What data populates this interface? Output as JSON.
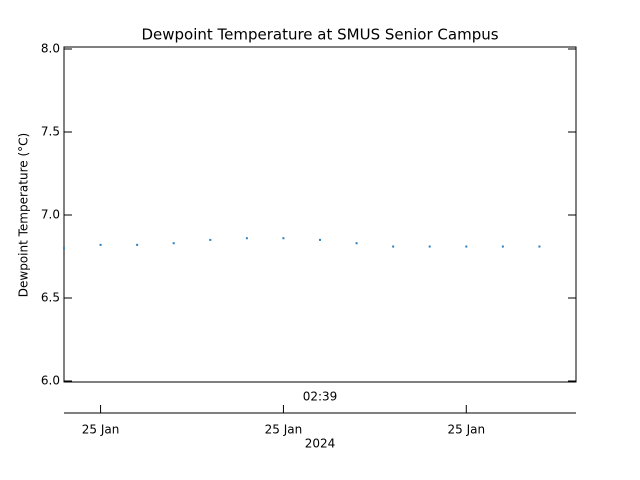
{
  "chart_data": {
    "type": "scatter",
    "title": "Dewpoint Temperature at SMUS Senior Campus",
    "ylabel": "Dewpoint Temperature (°C)",
    "xlabel": "02:39",
    "xlabel_year": "2024",
    "categories": [
      null,
      "25 Jan",
      null,
      null,
      null,
      null,
      "25 Jan",
      null,
      null,
      null,
      null,
      "25 Jan",
      null,
      null
    ],
    "values": [
      6.8,
      6.82,
      6.82,
      6.83,
      6.85,
      6.86,
      6.86,
      6.85,
      6.83,
      6.81,
      6.81,
      6.81,
      6.81,
      6.81
    ],
    "color": "#2a7fc0",
    "ylim": [
      6.0,
      8.0
    ],
    "yticks": [
      {
        "value": 6.0,
        "label": "6.0"
      },
      {
        "value": 6.5,
        "label": "6.5"
      },
      {
        "value": 7.0,
        "label": "7.0"
      },
      {
        "value": 7.5,
        "label": "7.5"
      },
      {
        "value": 8.0,
        "label": "8.0"
      }
    ]
  }
}
